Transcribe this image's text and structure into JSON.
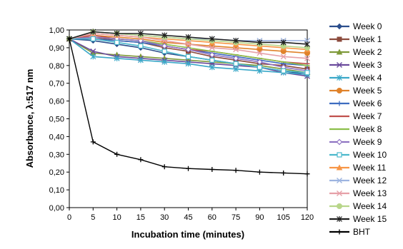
{
  "chart_data": {
    "type": "line",
    "title": "",
    "xlabel": "Incubation time (minutes)",
    "ylabel": "Absorbance, λ:517 nm",
    "categories": [
      "0",
      "5",
      "10",
      "15",
      "30",
      "45",
      "60",
      "75",
      "90",
      "105",
      "120"
    ],
    "ylim": [
      0,
      1.0
    ],
    "yticks": [
      "0,00",
      "0,10",
      "0,20",
      "0,30",
      "0,40",
      "0,50",
      "0,60",
      "0,70",
      "0,80",
      "0,90",
      "1,00"
    ],
    "grid": false,
    "legend_position": "right",
    "series": [
      {
        "name": "Week 0",
        "color": "#2b4e8c",
        "marker": "diamond",
        "values": [
          0.95,
          0.94,
          0.92,
          0.9,
          0.87,
          0.85,
          0.83,
          0.81,
          0.79,
          0.77,
          0.75
        ]
      },
      {
        "name": "Week 1",
        "color": "#8b4a3c",
        "marker": "square",
        "values": [
          0.95,
          0.96,
          0.94,
          0.93,
          0.9,
          0.88,
          0.85,
          0.83,
          0.81,
          0.8,
          0.78
        ]
      },
      {
        "name": "Week 2",
        "color": "#7f9a3a",
        "marker": "triangle",
        "values": [
          0.95,
          0.87,
          0.86,
          0.85,
          0.84,
          0.83,
          0.82,
          0.81,
          0.8,
          0.78,
          0.76
        ]
      },
      {
        "name": "Week 3",
        "color": "#6a4a9c",
        "marker": "x",
        "values": [
          0.95,
          0.88,
          0.85,
          0.84,
          0.83,
          0.82,
          0.81,
          0.8,
          0.79,
          0.76,
          0.74
        ]
      },
      {
        "name": "Week 4",
        "color": "#3aa8c8",
        "marker": "star",
        "values": [
          0.95,
          0.85,
          0.84,
          0.83,
          0.82,
          0.81,
          0.79,
          0.78,
          0.77,
          0.76,
          0.75
        ]
      },
      {
        "name": "Week 5",
        "color": "#e0822a",
        "marker": "circle",
        "values": [
          0.95,
          0.97,
          0.96,
          0.95,
          0.93,
          0.92,
          0.91,
          0.9,
          0.89,
          0.88,
          0.87
        ]
      },
      {
        "name": "Week 6",
        "color": "#3d6cc0",
        "marker": "plus",
        "values": [
          0.95,
          0.95,
          0.94,
          0.93,
          0.91,
          0.89,
          0.87,
          0.85,
          0.83,
          0.81,
          0.8
        ]
      },
      {
        "name": "Week 7",
        "color": "#c0504d",
        "marker": "dash",
        "values": [
          0.95,
          0.97,
          0.95,
          0.94,
          0.91,
          0.89,
          0.88,
          0.86,
          0.84,
          0.82,
          0.81
        ]
      },
      {
        "name": "Week 8",
        "color": "#8cbf4a",
        "marker": "dash",
        "values": [
          0.95,
          0.96,
          0.95,
          0.94,
          0.92,
          0.9,
          0.88,
          0.86,
          0.84,
          0.82,
          0.8
        ]
      },
      {
        "name": "Week 9",
        "color": "#8f74c2",
        "marker": "diamond-open",
        "values": [
          0.95,
          0.96,
          0.95,
          0.94,
          0.91,
          0.89,
          0.86,
          0.84,
          0.82,
          0.79,
          0.77
        ]
      },
      {
        "name": "Week 10",
        "color": "#4bb8cc",
        "marker": "square-open",
        "values": [
          0.95,
          0.95,
          0.93,
          0.91,
          0.88,
          0.85,
          0.83,
          0.81,
          0.79,
          0.77,
          0.76
        ]
      },
      {
        "name": "Week 11",
        "color": "#f79646",
        "marker": "triangle",
        "values": [
          0.95,
          0.98,
          0.97,
          0.96,
          0.95,
          0.94,
          0.93,
          0.92,
          0.91,
          0.9,
          0.89
        ]
      },
      {
        "name": "Week 12",
        "color": "#9db4e0",
        "marker": "x",
        "values": [
          0.95,
          0.99,
          0.98,
          0.97,
          0.96,
          0.95,
          0.95,
          0.94,
          0.94,
          0.94,
          0.94
        ]
      },
      {
        "name": "Week 13",
        "color": "#e6a0a8",
        "marker": "x",
        "values": [
          0.95,
          0.98,
          0.97,
          0.96,
          0.94,
          0.92,
          0.9,
          0.89,
          0.87,
          0.85,
          0.84
        ]
      },
      {
        "name": "Week 14",
        "color": "#b8d68a",
        "marker": "circle",
        "values": [
          0.95,
          0.99,
          0.98,
          0.97,
          0.96,
          0.95,
          0.94,
          0.93,
          0.92,
          0.91,
          0.9
        ]
      },
      {
        "name": "Week 15",
        "color": "#1f1f1f",
        "marker": "star",
        "values": [
          0.95,
          0.99,
          0.98,
          0.98,
          0.97,
          0.96,
          0.95,
          0.94,
          0.93,
          0.93,
          0.92
        ]
      },
      {
        "name": "BHT",
        "color": "#000000",
        "marker": "plus",
        "values": [
          0.95,
          0.37,
          0.3,
          0.27,
          0.23,
          0.22,
          0.215,
          0.21,
          0.2,
          0.195,
          0.19
        ]
      }
    ]
  }
}
